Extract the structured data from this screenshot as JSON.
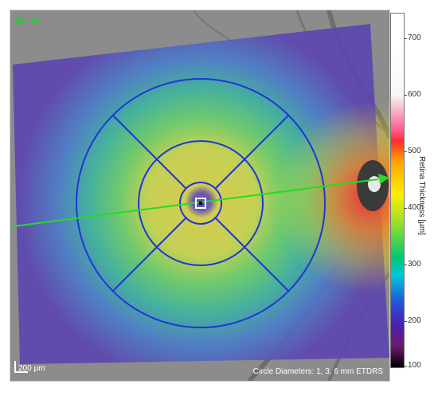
{
  "scan_counter": "31 / 61",
  "scale_bar_label": "200 µm",
  "circle_diameters_note": "Circle Diameters: 1, 3, 6 mm ETDRS",
  "colorbar": {
    "title": "Retina Thickness [µm]",
    "ticks": [
      "700",
      "600",
      "500",
      "400",
      "300",
      "200",
      "100"
    ]
  },
  "colors": {
    "grid_blue": "#1f36d6",
    "scan_line_green": "#22dd22",
    "counter_green": "#22cc22"
  },
  "icons": {
    "fovea_marker": "square-target-icon",
    "scan_arrow": "arrow-right-icon",
    "scale_bar": "scale-bar-icon"
  }
}
